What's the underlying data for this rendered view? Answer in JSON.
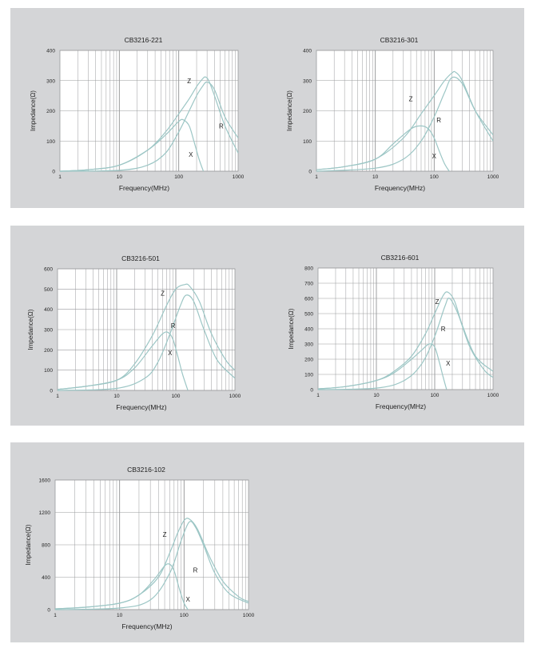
{
  "colors": {
    "panel_bg": "#d4d5d7",
    "plot_bg": "#ffffff",
    "grid": "#9a9b9d",
    "curve": "#9cc6c5",
    "text": "#222222"
  },
  "chart_data": [
    {
      "type": "line",
      "title": "CB3216-221",
      "xlabel": "Frequency(MHz)",
      "ylabel": "Impedance(Ω)",
      "xscale": "log",
      "xlim": [
        1,
        1000
      ],
      "ylim": [
        0,
        400
      ],
      "xticks": [
        "1",
        "10",
        "100",
        "1000"
      ],
      "yticks": [
        "0",
        "100",
        "200",
        "300",
        "400"
      ],
      "grid": true,
      "series": [
        {
          "name": "Z",
          "x": [
            1,
            3,
            10,
            30,
            60,
            100,
            150,
            200,
            250,
            280,
            320,
            400,
            600,
            1000
          ],
          "y": [
            0,
            5,
            20,
            70,
            130,
            190,
            240,
            280,
            305,
            312,
            300,
            250,
            150,
            60
          ]
        },
        {
          "name": "R",
          "x": [
            1,
            10,
            30,
            60,
            100,
            150,
            200,
            250,
            300,
            400,
            600,
            1000
          ],
          "y": [
            0,
            3,
            20,
            60,
            130,
            200,
            250,
            280,
            295,
            270,
            180,
            110
          ]
        },
        {
          "name": "X",
          "x": [
            1,
            3,
            10,
            30,
            60,
            100,
            120,
            150,
            180,
            220,
            260
          ],
          "y": [
            0,
            5,
            20,
            70,
            120,
            165,
            170,
            150,
            100,
            40,
            0
          ]
        }
      ],
      "annotations": [
        {
          "text": "Z",
          "x": 150,
          "y": 300
        },
        {
          "text": "R",
          "x": 520,
          "y": 150
        },
        {
          "text": "X",
          "x": 160,
          "y": 55
        }
      ]
    },
    {
      "type": "line",
      "title": "CB3216-301",
      "xlabel": "Frequency(MHz)",
      "ylabel": "Impedance(Ω)",
      "xscale": "log",
      "xlim": [
        1,
        1000
      ],
      "ylim": [
        0,
        400
      ],
      "xticks": [
        "1",
        "10",
        "100",
        "1000"
      ],
      "yticks": [
        "0",
        "100",
        "200",
        "300",
        "400"
      ],
      "grid": true,
      "series": [
        {
          "name": "Z",
          "x": [
            1,
            3,
            10,
            30,
            60,
            100,
            150,
            200,
            230,
            300,
            500,
            1000
          ],
          "y": [
            5,
            15,
            40,
            110,
            190,
            250,
            300,
            325,
            328,
            300,
            200,
            100
          ]
        },
        {
          "name": "R",
          "x": [
            1,
            10,
            30,
            60,
            100,
            150,
            200,
            300,
            500,
            1000
          ],
          "y": [
            0,
            10,
            40,
            100,
            180,
            260,
            310,
            290,
            200,
            120
          ]
        },
        {
          "name": "X",
          "x": [
            1,
            3,
            10,
            20,
            40,
            60,
            80,
            100,
            120,
            150,
            180
          ],
          "y": [
            5,
            15,
            40,
            90,
            140,
            150,
            140,
            110,
            70,
            25,
            0
          ]
        }
      ],
      "annotations": [
        {
          "text": "Z",
          "x": 40,
          "y": 240
        },
        {
          "text": "R",
          "x": 120,
          "y": 170
        },
        {
          "text": "X",
          "x": 100,
          "y": 50
        }
      ]
    },
    {
      "type": "line",
      "title": "CB3216-501",
      "xlabel": "Frequency(MHz)",
      "ylabel": "Impedance(Ω)",
      "xscale": "log",
      "xlim": [
        1,
        1000
      ],
      "ylim": [
        0,
        600
      ],
      "xticks": [
        "1",
        "10",
        "100",
        "1000"
      ],
      "yticks": [
        "0",
        "100",
        "200",
        "300",
        "400",
        "500",
        "600"
      ],
      "grid": true,
      "series": [
        {
          "name": "Z",
          "x": [
            1,
            3,
            10,
            20,
            40,
            70,
            100,
            140,
            170,
            250,
            400,
            700,
            1000
          ],
          "y": [
            5,
            20,
            50,
            130,
            270,
            420,
            500,
            522,
            515,
            440,
            280,
            150,
            100
          ]
        },
        {
          "name": "R",
          "x": [
            1,
            10,
            30,
            50,
            80,
            120,
            150,
            200,
            300,
            500,
            1000
          ],
          "y": [
            0,
            10,
            60,
            140,
            280,
            420,
            470,
            440,
            300,
            150,
            60
          ]
        },
        {
          "name": "X",
          "x": [
            1,
            3,
            10,
            20,
            40,
            60,
            75,
            90,
            110,
            130,
            160
          ],
          "y": [
            5,
            20,
            50,
            110,
            220,
            280,
            285,
            250,
            160,
            80,
            0
          ]
        }
      ],
      "annotations": [
        {
          "text": "Z",
          "x": 60,
          "y": 480
        },
        {
          "text": "R",
          "x": 90,
          "y": 320
        },
        {
          "text": "X",
          "x": 80,
          "y": 185
        }
      ]
    },
    {
      "type": "line",
      "title": "CB3216-601",
      "xlabel": "Frequency(MHz)",
      "ylabel": "Impedance(Ω)",
      "xscale": "log",
      "xlim": [
        1,
        1000
      ],
      "ylim": [
        0,
        800
      ],
      "xticks": [
        "1",
        "10",
        "100",
        "1000"
      ],
      "yticks": [
        "0",
        "100",
        "200",
        "300",
        "400",
        "500",
        "600",
        "700",
        "800"
      ],
      "grid": true,
      "series": [
        {
          "name": "Z",
          "x": [
            1,
            3,
            10,
            20,
            40,
            70,
            100,
            140,
            170,
            220,
            300,
            500,
            1000
          ],
          "y": [
            5,
            20,
            60,
            120,
            220,
            370,
            500,
            620,
            640,
            580,
            420,
            220,
            120
          ]
        },
        {
          "name": "R",
          "x": [
            1,
            10,
            30,
            60,
            100,
            150,
            180,
            250,
            400,
            700,
            1000
          ],
          "y": [
            0,
            10,
            60,
            170,
            350,
            550,
            600,
            500,
            280,
            130,
            80
          ]
        },
        {
          "name": "X",
          "x": [
            1,
            3,
            10,
            20,
            40,
            60,
            80,
            100,
            120,
            140,
            160
          ],
          "y": [
            5,
            20,
            60,
            110,
            200,
            260,
            300,
            280,
            180,
            80,
            0
          ]
        }
      ],
      "annotations": [
        {
          "text": "Z",
          "x": 110,
          "y": 580
        },
        {
          "text": "R",
          "x": 140,
          "y": 400
        },
        {
          "text": "X",
          "x": 170,
          "y": 175
        }
      ]
    },
    {
      "type": "line",
      "title": "CB3216-102",
      "xlabel": "Frequency(MHz)",
      "ylabel": "Impedance(Ω)",
      "xscale": "log",
      "xlim": [
        1,
        1000
      ],
      "ylim": [
        0,
        1600
      ],
      "xticks": [
        "1",
        "10",
        "100",
        "1000"
      ],
      "yticks": [
        "0",
        "400",
        "800",
        "1200",
        "1600"
      ],
      "grid": true,
      "series": [
        {
          "name": "Z",
          "x": [
            1,
            3,
            10,
            20,
            40,
            60,
            80,
            100,
            120,
            160,
            250,
            400,
            700,
            1000
          ],
          "y": [
            10,
            30,
            80,
            180,
            400,
            700,
            950,
            1100,
            1120,
            1000,
            650,
            350,
            160,
            100
          ]
        },
        {
          "name": "R",
          "x": [
            1,
            10,
            30,
            60,
            90,
            120,
            150,
            200,
            300,
            500,
            1000
          ],
          "y": [
            0,
            20,
            120,
            450,
            850,
            1080,
            1020,
            800,
            450,
            200,
            80
          ]
        },
        {
          "name": "X",
          "x": [
            1,
            3,
            10,
            20,
            35,
            50,
            60,
            70,
            85,
            100,
            115
          ],
          "y": [
            10,
            30,
            80,
            180,
            380,
            540,
            560,
            480,
            250,
            80,
            0
          ]
        }
      ],
      "annotations": [
        {
          "text": "Z",
          "x": 50,
          "y": 930
        },
        {
          "text": "R",
          "x": 150,
          "y": 490
        },
        {
          "text": "X",
          "x": 115,
          "y": 130
        }
      ]
    }
  ]
}
